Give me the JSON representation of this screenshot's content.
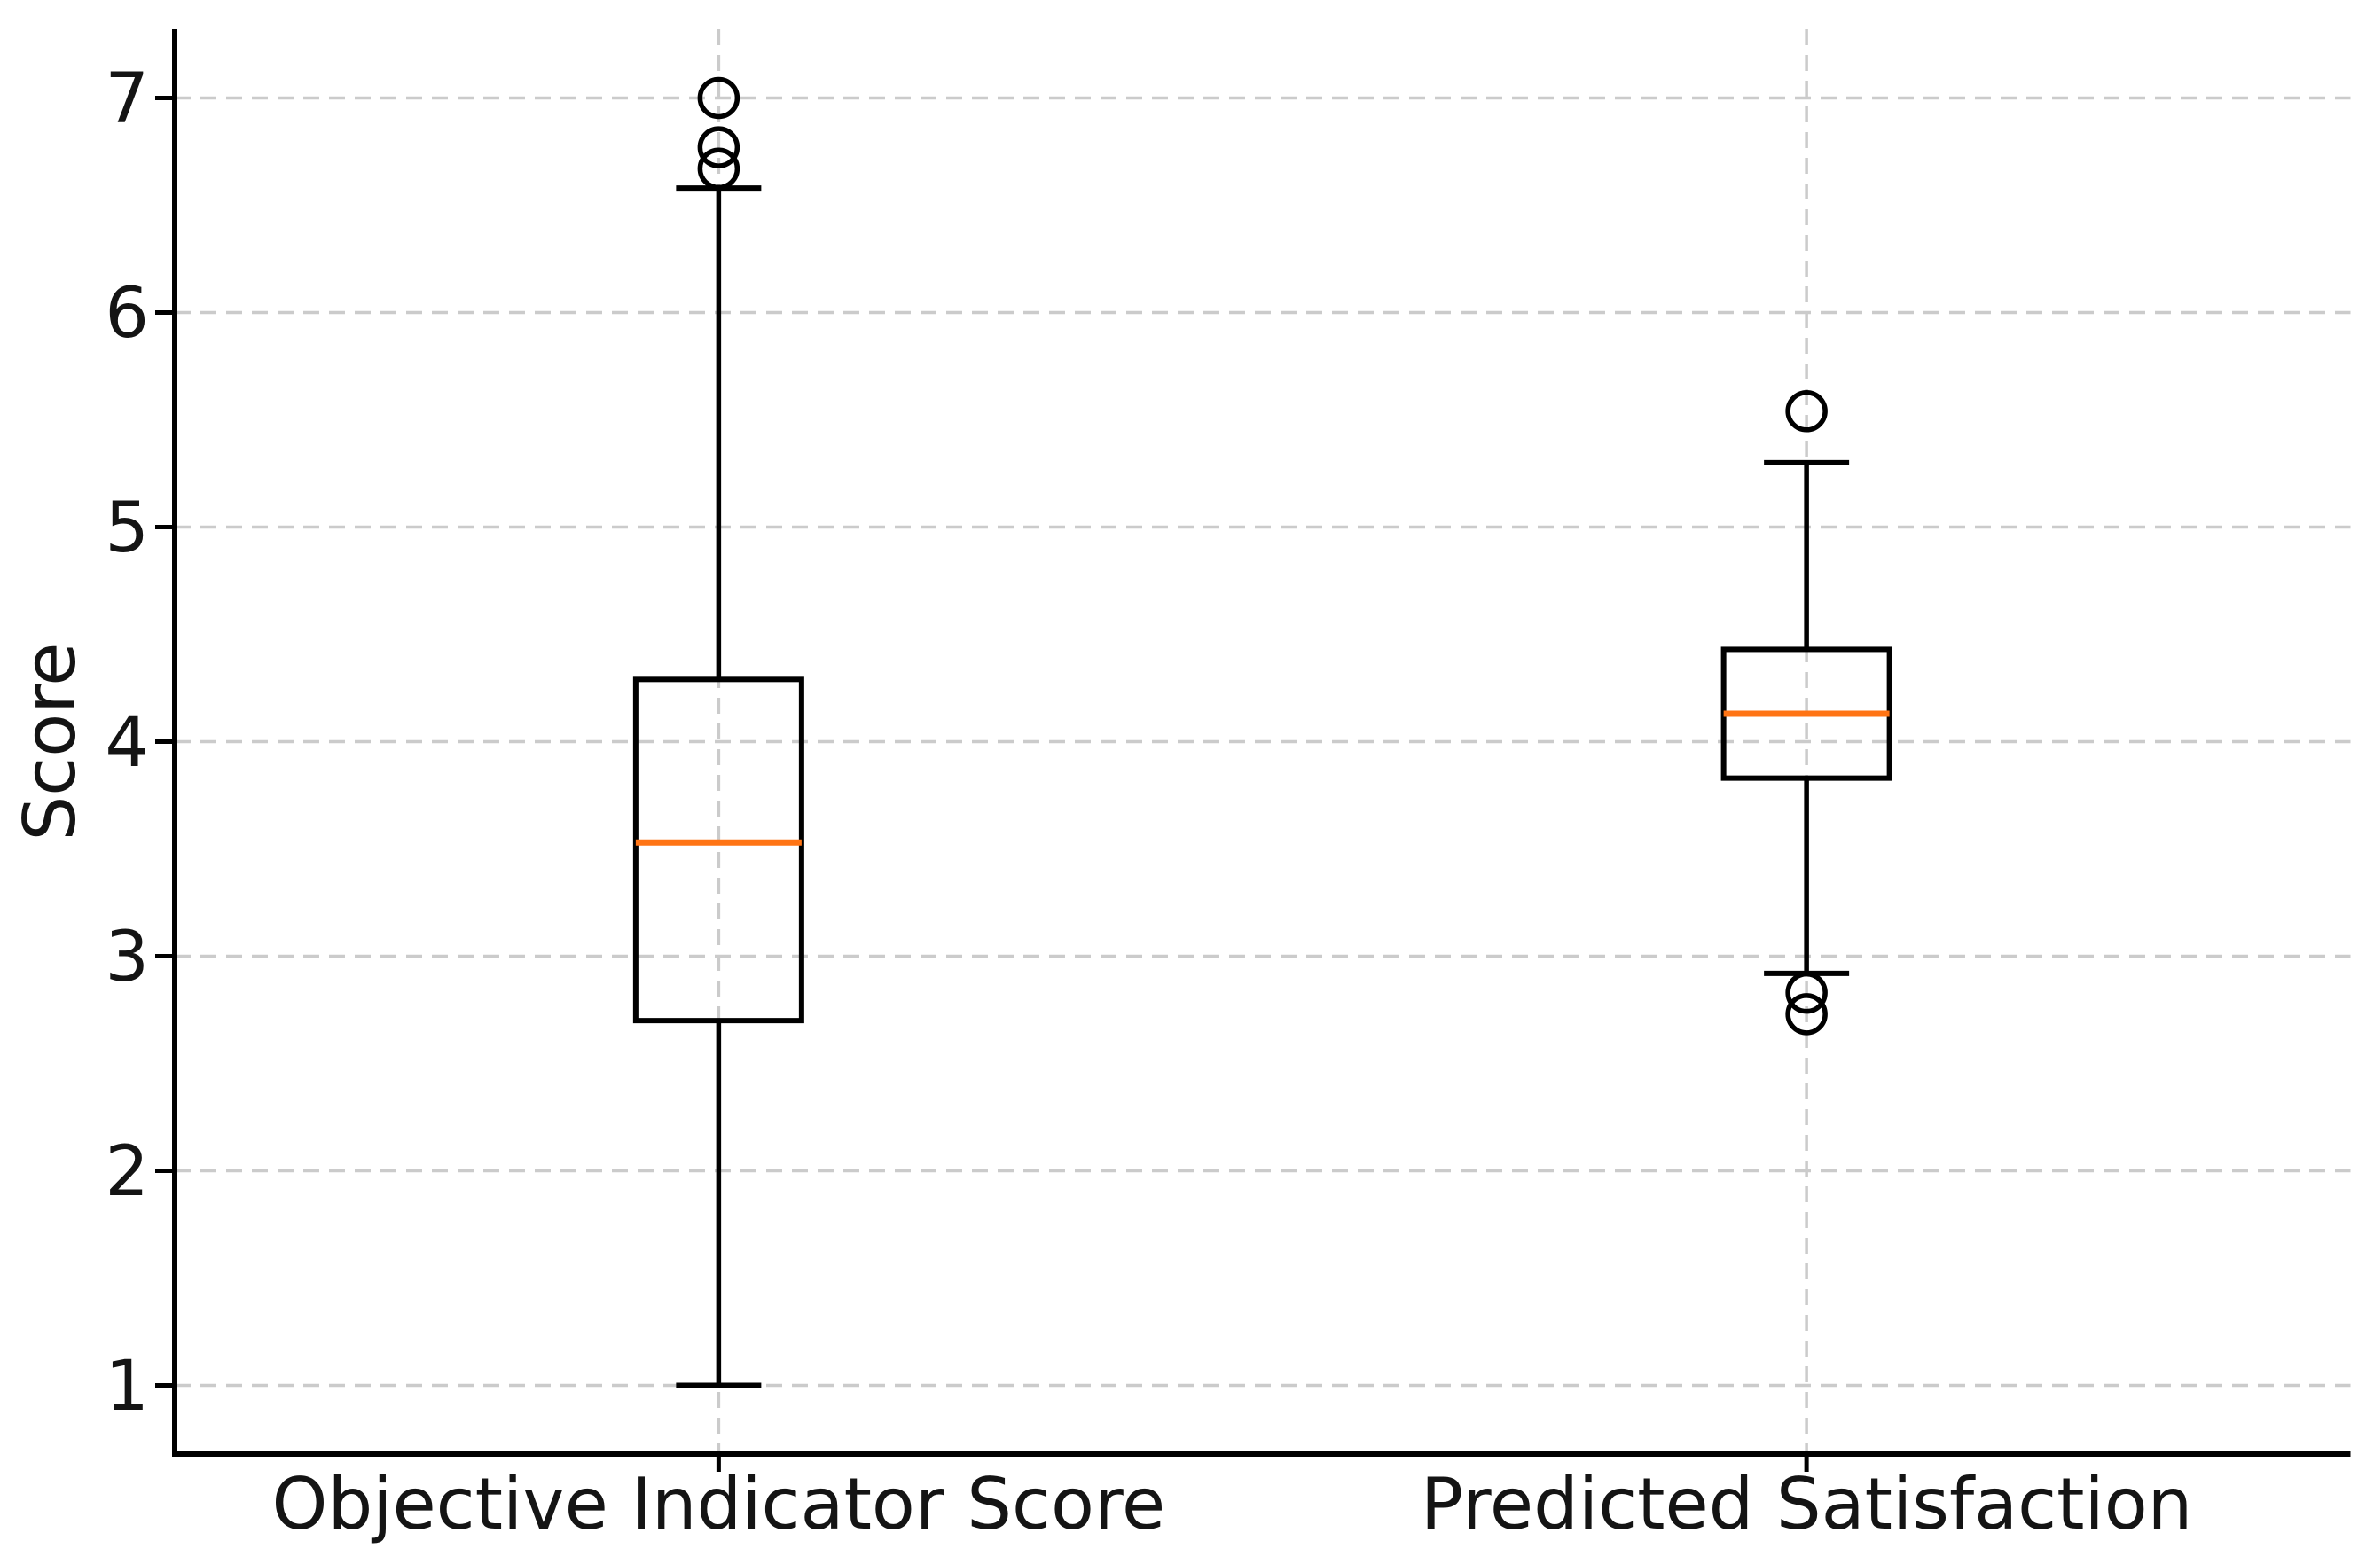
{
  "chart_data": {
    "type": "boxplot",
    "title": "",
    "xlabel": "",
    "ylabel": "Score",
    "categories": [
      "Objective Indicator Score",
      "Predicted Satisfaction"
    ],
    "yticks": [
      1,
      2,
      3,
      4,
      5,
      6,
      7
    ],
    "ytick_labels": [
      "1",
      "2",
      "3",
      "4",
      "5",
      "6",
      "7"
    ],
    "ylim": [
      0.68,
      7.32
    ],
    "xlim": [
      0.5,
      2.5
    ],
    "grid": {
      "horizontal": true,
      "vertical": true,
      "line_style": "dashed",
      "color": "#cbcbcb"
    },
    "legend": null,
    "series": [
      {
        "name": "Objective Indicator Score",
        "x": 1,
        "whisker_low": 1.0,
        "q1": 2.7,
        "median": 3.53,
        "q3": 4.29,
        "whisker_high": 6.58,
        "outliers": [
          6.67,
          6.77,
          7.0
        ]
      },
      {
        "name": "Predicted Satisfaction",
        "x": 2,
        "whisker_low": 2.92,
        "q1": 3.83,
        "median": 4.13,
        "q3": 4.43,
        "whisker_high": 5.3,
        "outliers": [
          2.73,
          2.83,
          5.54
        ]
      }
    ],
    "colors": {
      "box_line": "#000000",
      "median_line": "#ff7414",
      "whisker_line": "#000000",
      "outlier_edge": "#000000",
      "axis_spine": "#000000",
      "text": "#141414"
    }
  }
}
